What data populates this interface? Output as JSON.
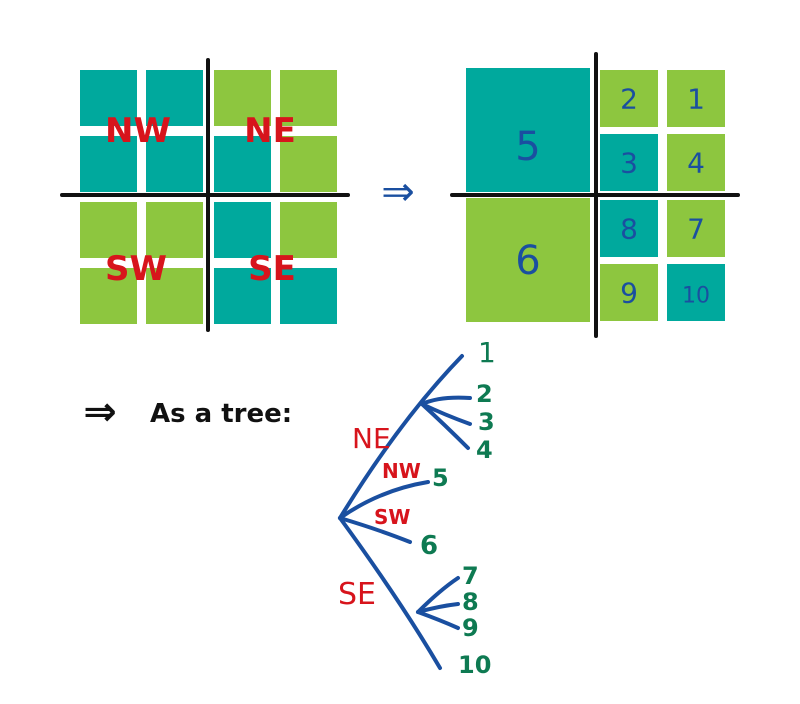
{
  "colors": {
    "teal": "#00A99D",
    "green": "#8DC63F",
    "red": "#D7141C",
    "blue": "#1A4FA0",
    "darkgreen": "#0E7A52",
    "black": "#111111"
  },
  "left_grid": {
    "cells": [
      [
        "teal",
        "teal",
        "green",
        "green"
      ],
      [
        "teal",
        "teal",
        "teal",
        "green"
      ],
      [
        "green",
        "green",
        "teal",
        "green"
      ],
      [
        "green",
        "green",
        "teal",
        "teal"
      ]
    ],
    "labels": {
      "nw": "NW",
      "ne": "NE",
      "sw": "SW",
      "se": "SE"
    }
  },
  "arrow_symbol": "⇒",
  "right_grid": {
    "big_nw": "5",
    "big_sw": "6",
    "ne_cells": [
      {
        "label": "2",
        "color": "green"
      },
      {
        "label": "1",
        "color": "green"
      },
      {
        "label": "3",
        "color": "teal"
      },
      {
        "label": "4",
        "color": "green"
      }
    ],
    "se_cells": [
      {
        "label": "8",
        "color": "teal"
      },
      {
        "label": "7",
        "color": "green"
      },
      {
        "label": "9",
        "color": "green"
      },
      {
        "label": "10",
        "color": "teal"
      }
    ]
  },
  "tree_caption": {
    "arrow": "⇒",
    "text": "As a tree:"
  },
  "tree": {
    "branch_labels": {
      "ne": "NE",
      "nw": "NW",
      "sw": "SW",
      "se": "SE"
    },
    "ne_leaves": [
      "1",
      "2",
      "3",
      "4"
    ],
    "nw_leaf": "5",
    "sw_leaf": "6",
    "se_leaves": [
      "7",
      "8",
      "9",
      "10"
    ]
  }
}
